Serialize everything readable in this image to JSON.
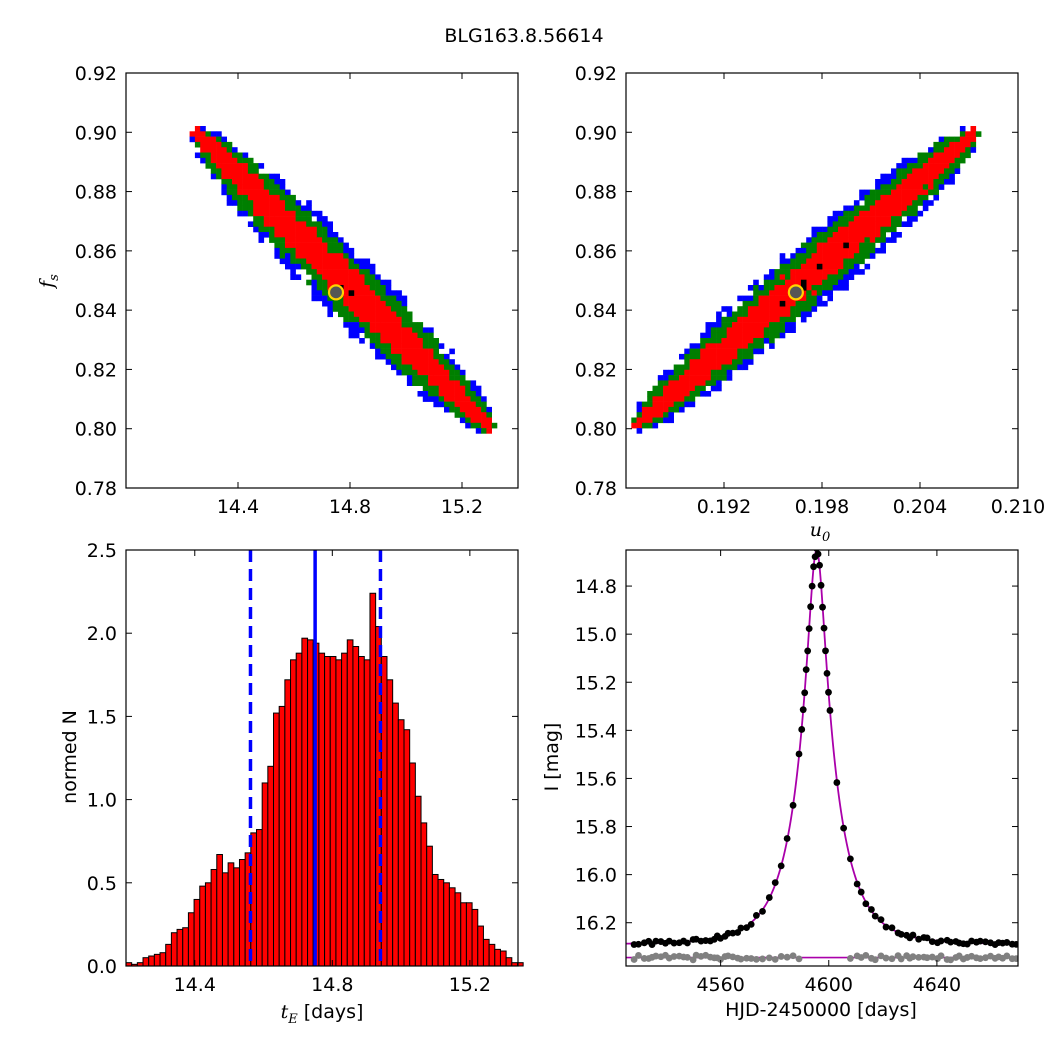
{
  "figure_title": "BLG163.8.56614",
  "chart_data": [
    {
      "panel": "top-left",
      "type": "heatmap",
      "title": "",
      "xlabel": "",
      "ylabel": "f",
      "ylabel_sub": "s",
      "xlim": [
        14.0,
        15.4
      ],
      "ylim": [
        0.78,
        0.92
      ],
      "xticks": [
        14.4,
        14.8,
        15.2
      ],
      "xtick_labels": [
        "14.4",
        "14.8",
        "15.2"
      ],
      "yticks": [
        0.78,
        0.8,
        0.82,
        0.84,
        0.86,
        0.88,
        0.9,
        0.92
      ],
      "ytick_labels": [
        "0.78",
        "0.80",
        "0.82",
        "0.84",
        "0.86",
        "0.88",
        "0.90",
        "0.92"
      ],
      "ridge": {
        "x0": 14.25,
        "y0": 0.9,
        "x1": 15.3,
        "y1": 0.8
      },
      "contour_colors": {
        "outer": "#0000ff",
        "middle": "#007f00",
        "inner": "#ff0000",
        "peak": "#000000"
      },
      "best_fit": {
        "x": 14.75,
        "y": 0.846
      }
    },
    {
      "panel": "top-right",
      "type": "heatmap",
      "title": "",
      "xlabel": "u",
      "xlabel_sub": "0",
      "ylabel": "",
      "xlim": [
        0.186,
        0.21
      ],
      "ylim": [
        0.78,
        0.92
      ],
      "xticks": [
        0.192,
        0.198,
        0.204,
        0.21
      ],
      "xtick_labels": [
        "0.192",
        "0.198",
        "0.204",
        "0.210"
      ],
      "yticks": [
        0.78,
        0.8,
        0.82,
        0.84,
        0.86,
        0.88,
        0.9,
        0.92
      ],
      "ytick_labels": [
        "0.78",
        "0.80",
        "0.82",
        "0.84",
        "0.86",
        "0.88",
        "0.90",
        "0.92"
      ],
      "ridge": {
        "x0": 0.1866,
        "y0": 0.801,
        "x1": 0.2074,
        "y1": 0.9
      },
      "contour_colors": {
        "outer": "#0000ff",
        "middle": "#007f00",
        "inner": "#ff0000",
        "peak": "#000000"
      },
      "best_fit": {
        "x": 0.1964,
        "y": 0.846
      }
    },
    {
      "panel": "bottom-left",
      "type": "bar",
      "title": "",
      "xlabel_math": "t",
      "xlabel_sub": "E",
      "xlabel_text": " [days]",
      "ylabel": "normed N",
      "xlim": [
        14.2,
        15.34
      ],
      "ylim": [
        0.0,
        2.5
      ],
      "xticks": [
        14.4,
        14.8,
        15.2
      ],
      "xtick_labels": [
        "14.4",
        "14.8",
        "15.2"
      ],
      "yticks": [
        0.0,
        0.5,
        1.0,
        1.5,
        2.0,
        2.5
      ],
      "ytick_labels": [
        "0.0",
        "0.5",
        "1.0",
        "1.5",
        "2.0",
        "2.5"
      ],
      "bin_start": 14.2,
      "bin_width": 0.0165,
      "values": [
        0.02,
        0.01,
        0.02,
        0.05,
        0.06,
        0.07,
        0.08,
        0.13,
        0.2,
        0.22,
        0.23,
        0.32,
        0.4,
        0.48,
        0.5,
        0.58,
        0.67,
        0.56,
        0.62,
        0.59,
        0.64,
        0.68,
        0.8,
        0.82,
        1.1,
        1.2,
        1.52,
        1.56,
        1.72,
        1.84,
        1.88,
        1.97,
        1.96,
        1.94,
        1.88,
        1.86,
        1.86,
        1.84,
        1.88,
        1.96,
        1.92,
        1.86,
        1.84,
        2.24,
        2.04,
        1.86,
        1.72,
        1.58,
        1.48,
        1.42,
        1.22,
        1.02,
        0.86,
        0.72,
        0.55,
        0.52,
        0.5,
        0.47,
        0.44,
        0.38,
        0.38,
        0.34,
        0.24,
        0.16,
        0.13,
        0.1,
        0.09,
        0.05,
        0.02,
        0.02
      ],
      "bar_color": "#ff0000",
      "median_line": 14.75,
      "interval_lines": [
        14.562,
        14.94
      ],
      "line_color": "#0000ff"
    },
    {
      "panel": "bottom-right",
      "type": "scatter",
      "title": "",
      "xlabel": "HJD-2450000 [days]",
      "ylabel": "I [mag]",
      "xlim": [
        4525,
        4670
      ],
      "ylim": [
        16.38,
        14.65
      ],
      "xticks": [
        4560,
        4600,
        4640
      ],
      "xtick_labels": [
        "4560",
        "4600",
        "4640"
      ],
      "yticks": [
        14.8,
        15.0,
        15.2,
        15.4,
        15.6,
        15.8,
        16.0,
        16.2
      ],
      "ytick_labels": [
        "14.8",
        "15.0",
        "15.2",
        "15.4",
        "15.6",
        "15.8",
        "16.0",
        "16.2"
      ],
      "model": {
        "t0": 4595.5,
        "tE": 14.75,
        "u0": 0.1964,
        "fs": 0.846,
        "I_base": 16.29
      },
      "residual_baseline": 16.345,
      "model_color": "#aa00aa",
      "data_color": "#000000",
      "residual_color": "#808080"
    }
  ]
}
